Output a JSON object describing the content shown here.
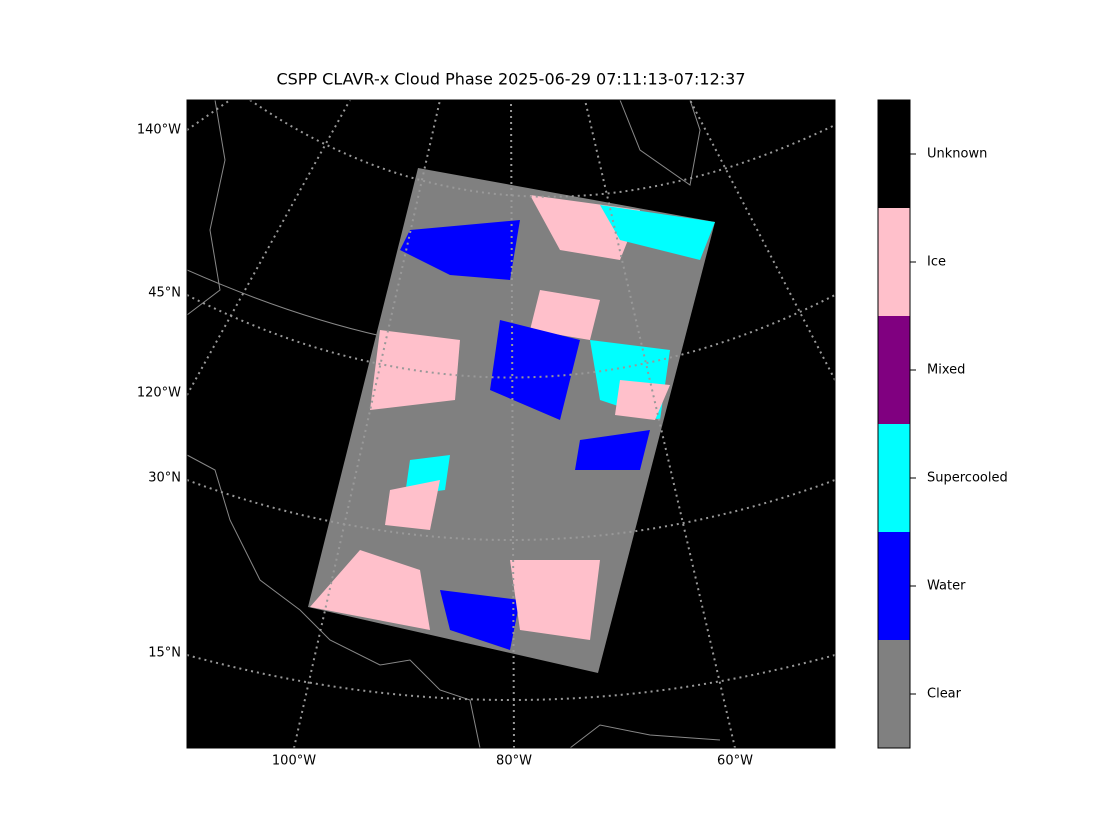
{
  "title": "CSPP CLAVR-x Cloud Phase 2025-06-29 07:11:13-07:12:37",
  "map": {
    "left_labels": [
      "140°W",
      "45°N",
      "120°W",
      "30°N",
      "15°N"
    ],
    "bottom_labels": [
      "100°W",
      "80°W",
      "60°W"
    ]
  },
  "colorbar": {
    "categories": [
      {
        "label": "Clear",
        "color": "#808080"
      },
      {
        "label": "Water",
        "color": "#0000ff"
      },
      {
        "label": "Supercooled",
        "color": "#00ffff"
      },
      {
        "label": "Mixed",
        "color": "#800080"
      },
      {
        "label": "Ice",
        "color": "#ffc0cb"
      },
      {
        "label": "Unknown",
        "color": "#000000"
      }
    ]
  }
}
